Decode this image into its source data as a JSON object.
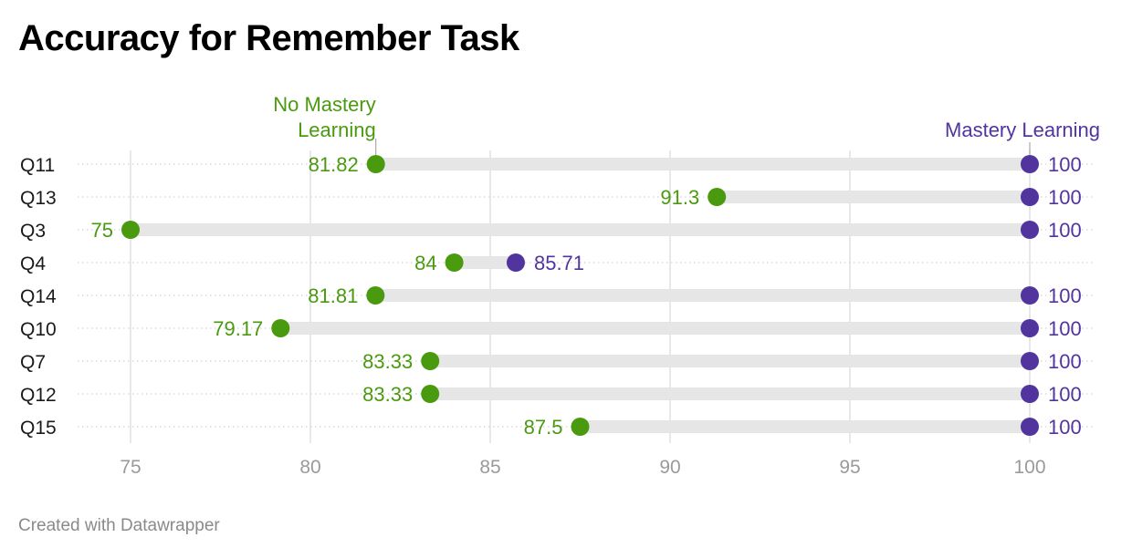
{
  "title": "Accuracy for Remember Task",
  "footer": "Created with Datawrapper",
  "colors": {
    "no_mastery": "#4a9a0f",
    "mastery": "#52349e",
    "range_bar": "#e6e6e6",
    "grid": "#e0e0e0"
  },
  "chart_data": {
    "type": "range-dot",
    "title": "Accuracy for Remember Task",
    "xlim": [
      75,
      100
    ],
    "xticks": [
      75,
      80,
      85,
      90,
      95,
      100
    ],
    "categories": [
      "Q11",
      "Q13",
      "Q3",
      "Q4",
      "Q14",
      "Q10",
      "Q7",
      "Q12",
      "Q15"
    ],
    "series": [
      {
        "name": "No Mastery Learning",
        "color": "#4a9a0f",
        "values": [
          81.82,
          91.3,
          75,
          84,
          81.81,
          79.17,
          83.33,
          83.33,
          87.5
        ]
      },
      {
        "name": "Mastery Learning",
        "color": "#52349e",
        "values": [
          100,
          100,
          100,
          85.71,
          100,
          100,
          100,
          100,
          100
        ]
      }
    ],
    "legend": [
      {
        "lines": [
          "No Mastery",
          "Learning"
        ],
        "series": 0
      },
      {
        "lines": [
          "Mastery Learning"
        ],
        "series": 1
      }
    ]
  }
}
